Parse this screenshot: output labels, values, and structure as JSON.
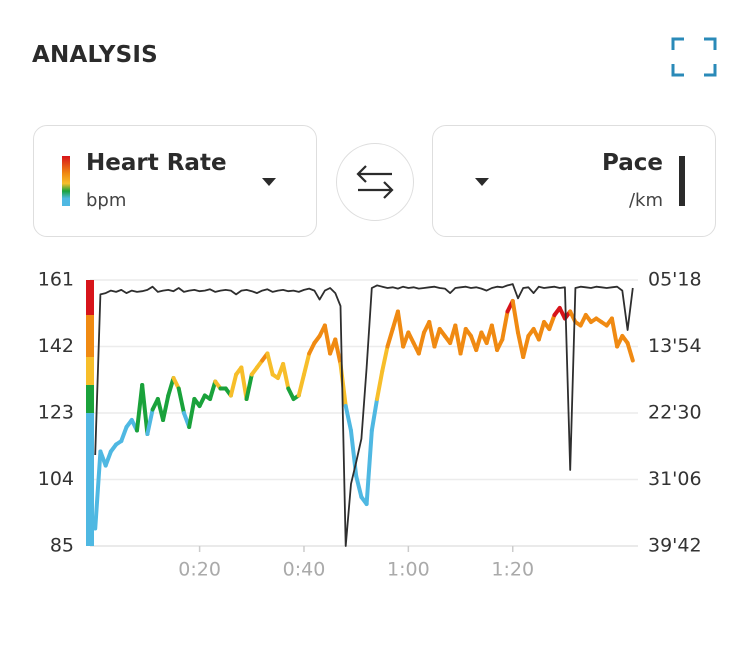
{
  "header": {
    "title": "ANALYSIS"
  },
  "selectors": {
    "left": {
      "label": "Heart Rate",
      "unit": "bpm"
    },
    "right": {
      "label": "Pace",
      "unit": "/km"
    }
  },
  "chart_data": {
    "type": "line",
    "x": [
      0,
      1,
      2,
      3,
      4,
      5,
      6,
      7,
      8,
      9,
      10,
      11,
      12,
      13,
      14,
      15,
      16,
      17,
      18,
      19,
      20,
      21,
      22,
      23,
      24,
      25,
      26,
      27,
      28,
      29,
      30,
      31,
      32,
      33,
      34,
      35,
      36,
      37,
      38,
      39,
      40,
      41,
      42,
      43,
      44,
      45,
      46,
      47,
      48,
      49,
      50,
      51,
      52,
      53,
      54,
      55,
      56,
      57,
      58,
      59,
      60,
      61,
      62,
      63,
      64,
      65,
      66,
      67,
      68,
      69,
      70,
      71,
      72,
      73,
      74,
      75,
      76,
      77,
      78,
      79,
      80,
      81,
      82,
      83,
      84,
      85,
      86,
      87,
      88,
      89,
      90,
      91,
      92,
      93,
      94,
      95,
      96,
      97,
      98,
      99,
      100,
      101,
      102,
      103
    ],
    "series": [
      {
        "name": "Heart Rate",
        "zones": [
          {
            "from": 85,
            "to": 123,
            "color": "#4fb8e2"
          },
          {
            "from": 123,
            "to": 131,
            "color": "#1aa23b"
          },
          {
            "from": 131,
            "to": 139,
            "color": "#f7be2a"
          },
          {
            "from": 139,
            "to": 151,
            "color": "#f08a12"
          },
          {
            "from": 151,
            "to": 161,
            "color": "#d7141a"
          }
        ],
        "values": [
          90,
          112,
          108,
          112,
          114,
          115,
          119,
          121,
          118,
          131,
          117,
          124,
          127,
          121,
          128,
          133,
          130,
          123,
          119,
          127,
          125,
          128,
          127,
          132,
          130,
          130,
          128,
          134,
          136,
          127,
          134,
          136,
          138,
          140,
          134,
          133,
          137,
          130,
          127,
          128,
          134,
          140,
          143,
          145,
          148,
          140,
          144,
          137,
          125,
          118,
          105,
          99,
          97,
          118,
          127,
          135,
          142,
          147,
          152,
          142,
          146,
          143,
          140,
          146,
          149,
          142,
          147,
          145,
          143,
          148,
          140,
          147,
          145,
          141,
          146,
          143,
          148,
          141,
          144,
          152,
          155,
          146,
          139,
          145,
          147,
          144,
          149,
          147,
          151,
          153,
          150,
          152,
          149,
          148,
          151,
          149,
          150,
          149,
          148,
          150,
          142,
          145,
          143,
          138
        ]
      },
      {
        "name": "Pace",
        "axis": "y2",
        "color": "#2e2e2e",
        "values": [
          1676,
          430,
          420,
          400,
          410,
          395,
          420,
          400,
          410,
          405,
          395,
          370,
          410,
          400,
          395,
          405,
          380,
          410,
          400,
          395,
          405,
          400,
          390,
          410,
          400,
          395,
          400,
          430,
          400,
          395,
          405,
          420,
          400,
          390,
          410,
          400,
          395,
          405,
          400,
          410,
          395,
          385,
          400,
          470,
          400,
          380,
          420,
          520,
          2382,
          1900,
          1730,
          1550,
          1000,
          380,
          360,
          370,
          380,
          375,
          385,
          370,
          380,
          375,
          385,
          380,
          375,
          370,
          380,
          385,
          420,
          380,
          375,
          370,
          380,
          375,
          385,
          400,
          380,
          370,
          375,
          360,
          350,
          460,
          380,
          375,
          420,
          370,
          380,
          375,
          370,
          380,
          375,
          1792,
          380,
          370,
          375,
          380,
          370,
          375,
          380,
          375,
          370,
          400,
          706,
          380
        ]
      }
    ],
    "xlim": [
      -1,
      104
    ],
    "xticks": [
      {
        "value": 20,
        "label": "0:20"
      },
      {
        "value": 40,
        "label": "0:40"
      },
      {
        "value": 60,
        "label": "1:00"
      },
      {
        "value": 80,
        "label": "1:20"
      }
    ],
    "ylim": [
      85,
      161
    ],
    "yticks": [
      85,
      104,
      123,
      142,
      161
    ],
    "y2lim": [
      2382,
      318
    ],
    "y2ticks": [
      {
        "value": 2382,
        "label": "39'42"
      },
      {
        "value": 1866,
        "label": "31'06"
      },
      {
        "value": 1350,
        "label": "22'30"
      },
      {
        "value": 834,
        "label": "13'54"
      },
      {
        "value": 318,
        "label": "05'18"
      }
    ],
    "grid": true
  }
}
